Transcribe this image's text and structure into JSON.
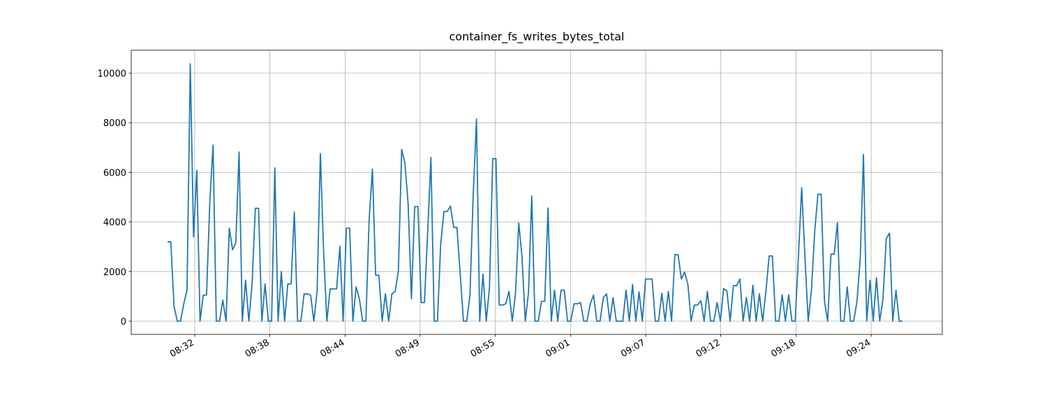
{
  "chart_data": {
    "type": "line",
    "title": "container_fs_writes_bytes_total",
    "color": "#1f77b4",
    "grid": true,
    "xlim": [
      507.62,
      569.97
    ],
    "ylim": [
      -534,
      10927
    ],
    "xticks": [
      {
        "value": 512.5,
        "label": "08:32"
      },
      {
        "value": 518.28,
        "label": "08:38"
      },
      {
        "value": 524.06,
        "label": "08:44"
      },
      {
        "value": 529.83,
        "label": "08:49"
      },
      {
        "value": 535.61,
        "label": "08:55"
      },
      {
        "value": 541.39,
        "label": "09:01"
      },
      {
        "value": 547.17,
        "label": "09:07"
      },
      {
        "value": 552.94,
        "label": "09:12"
      },
      {
        "value": 558.72,
        "label": "09:18"
      },
      {
        "value": 564.5,
        "label": "09:24"
      }
    ],
    "yticks": [
      0,
      2000,
      4000,
      6000,
      8000,
      10000
    ],
    "x": [
      510.41,
      510.66,
      510.91,
      511.16,
      511.41,
      511.66,
      511.91,
      512.16,
      512.41,
      512.66,
      512.91,
      513.16,
      513.41,
      513.66,
      513.91,
      514.16,
      514.41,
      514.66,
      514.91,
      515.16,
      515.41,
      515.66,
      515.91,
      516.16,
      516.41,
      516.66,
      516.91,
      517.16,
      517.41,
      517.66,
      517.91,
      518.16,
      518.41,
      518.66,
      518.91,
      519.16,
      519.41,
      519.66,
      519.91,
      520.16,
      520.41,
      520.66,
      520.91,
      521.16,
      521.41,
      521.66,
      521.91,
      522.16,
      522.41,
      522.66,
      522.91,
      523.16,
      523.41,
      523.66,
      523.91,
      524.16,
      524.41,
      524.66,
      524.91,
      525.16,
      525.41,
      525.66,
      525.91,
      526.16,
      526.41,
      526.66,
      526.91,
      527.16,
      527.41,
      527.66,
      527.91,
      528.16,
      528.41,
      528.66,
      528.91,
      529.16,
      529.41,
      529.66,
      529.91,
      530.16,
      530.41,
      530.66,
      530.91,
      531.16,
      531.41,
      531.66,
      531.91,
      532.16,
      532.41,
      532.66,
      532.91,
      533.16,
      533.41,
      533.66,
      533.91,
      534.16,
      534.41,
      534.66,
      534.91,
      535.16,
      535.41,
      535.66,
      535.91,
      536.16,
      536.41,
      536.66,
      536.91,
      537.16,
      537.41,
      537.66,
      537.91,
      538.16,
      538.41,
      538.66,
      538.91,
      539.16,
      539.41,
      539.66,
      539.91,
      540.16,
      540.41,
      540.66,
      540.91,
      541.16,
      541.41,
      541.66,
      541.91,
      542.16,
      542.41,
      542.66,
      542.91,
      543.16,
      543.41,
      543.66,
      543.91,
      544.16,
      544.41,
      544.66,
      544.91,
      545.16,
      545.41,
      545.66,
      545.91,
      546.16,
      546.41,
      546.66,
      546.91,
      547.16,
      547.41,
      547.66,
      547.91,
      548.16,
      548.41,
      548.66,
      548.91,
      549.16,
      549.41,
      549.66,
      549.91,
      550.16,
      550.41,
      550.66,
      550.91,
      551.16,
      551.41,
      551.66,
      551.91,
      552.16,
      552.41,
      552.66,
      552.91,
      553.16,
      553.41,
      553.66,
      553.91,
      554.16,
      554.41,
      554.66,
      554.91,
      555.16,
      555.41,
      555.66,
      555.91,
      556.16,
      556.41,
      556.66,
      556.91,
      557.16,
      557.41,
      557.66,
      557.91,
      558.16,
      558.41,
      558.66,
      558.91,
      559.16,
      559.41,
      559.66,
      559.91,
      560.16,
      560.41,
      560.66,
      560.91,
      561.16,
      561.41,
      561.66,
      561.91,
      562.16,
      562.41,
      562.66,
      562.91,
      563.16,
      563.41,
      563.66,
      563.91,
      564.16,
      564.41,
      564.66,
      564.91,
      565.16,
      565.41,
      565.66,
      565.91,
      566.16,
      566.41,
      566.66,
      566.91
    ],
    "values": [
      3200,
      3200,
      600,
      0,
      0,
      700,
      1250,
      10380,
      3400,
      6080,
      0,
      1050,
      1050,
      4800,
      7100,
      0,
      0,
      850,
      0,
      3750,
      2880,
      3150,
      6820,
      0,
      1650,
      0,
      1500,
      4550,
      4550,
      0,
      1500,
      0,
      0,
      6180,
      0,
      2000,
      0,
      1500,
      1500,
      4400,
      0,
      0,
      1100,
      1100,
      1050,
      0,
      1200,
      6760,
      2800,
      0,
      1300,
      1300,
      1300,
      3020,
      0,
      3750,
      3750,
      0,
      1380,
      900,
      0,
      0,
      4100,
      6130,
      1850,
      1850,
      0,
      1100,
      0,
      1100,
      1200,
      2050,
      6930,
      6380,
      4700,
      900,
      4620,
      4620,
      750,
      750,
      3600,
      6600,
      0,
      0,
      3100,
      4420,
      4420,
      4640,
      3780,
      3780,
      1900,
      0,
      0,
      1050,
      5100,
      8150,
      0,
      1900,
      0,
      1350,
      6550,
      6550,
      650,
      650,
      700,
      1200,
      0,
      1100,
      3960,
      2600,
      0,
      1150,
      5050,
      0,
      0,
      800,
      800,
      4560,
      0,
      1250,
      0,
      1250,
      1250,
      0,
      0,
      700,
      700,
      750,
      0,
      0,
      700,
      1050,
      0,
      0,
      950,
      1100,
      0,
      950,
      0,
      0,
      0,
      1250,
      0,
      1480,
      0,
      1180,
      0,
      1700,
      1700,
      1700,
      0,
      0,
      1130,
      0,
      1200,
      0,
      2680,
      2680,
      1700,
      1980,
      1500,
      0,
      650,
      650,
      820,
      0,
      1200,
      0,
      0,
      750,
      0,
      1320,
      1220,
      0,
      1430,
      1430,
      1700,
      0,
      950,
      0,
      1450,
      0,
      1100,
      0,
      1200,
      2630,
      2630,
      0,
      0,
      1060,
      0,
      1060,
      0,
      0,
      2600,
      5380,
      2600,
      0,
      1250,
      3600,
      5120,
      5120,
      820,
      0,
      2700,
      2700,
      3980,
      0,
      0,
      1380,
      0,
      0,
      800,
      2500,
      6720,
      0,
      1650,
      0,
      1750,
      0,
      900,
      3330,
      3550,
      0,
      1250,
      0,
      0
    ]
  }
}
